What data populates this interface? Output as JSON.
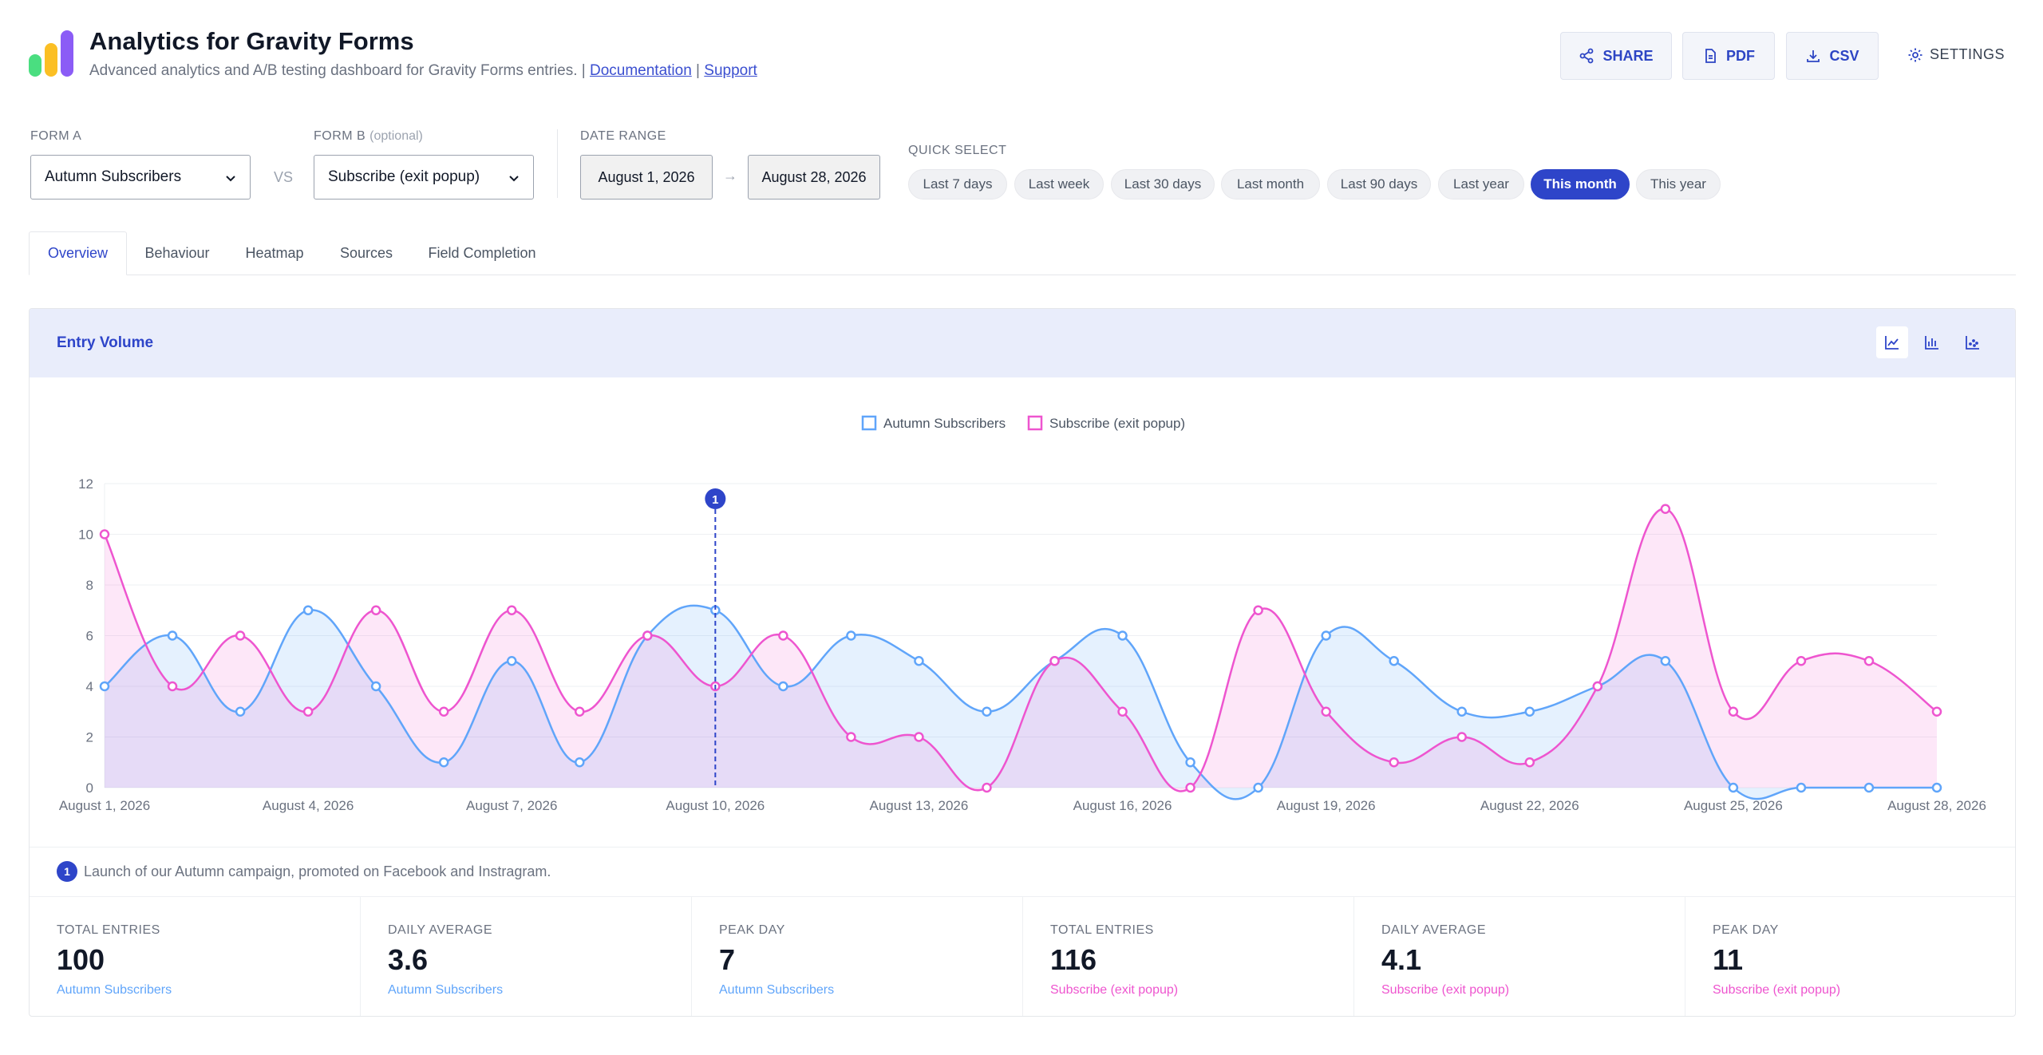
{
  "header": {
    "title": "Analytics for Gravity Forms",
    "subtitle": "Advanced analytics and A/B testing dashboard for Gravity Forms entries. |",
    "doc_link": "Documentation",
    "separator": "|",
    "support_link": "Support",
    "buttons": {
      "share": "SHARE",
      "pdf": "PDF",
      "csv": "CSV",
      "settings": "SETTINGS"
    }
  },
  "filters": {
    "form_a_label": "FORM A",
    "form_a_value": "Autumn Subscribers",
    "vs": "VS",
    "form_b_label": "FORM B",
    "form_b_optional": "(optional)",
    "form_b_value": "Subscribe (exit popup)",
    "date_range_label": "DATE RANGE",
    "date_from": "August 1, 2026",
    "date_arrow": "→",
    "date_to": "August 28, 2026",
    "quick_select_label": "QUICK SELECT",
    "quick": [
      "Last 7 days",
      "Last week",
      "Last 30 days",
      "Last month",
      "Last 90 days",
      "Last year",
      "This month",
      "This year"
    ],
    "quick_active": "This month"
  },
  "tabs": [
    "Overview",
    "Behaviour",
    "Heatmap",
    "Sources",
    "Field Completion"
  ],
  "active_tab": "Overview",
  "panel": {
    "title": "Entry Volume",
    "chart_types": [
      "line-chart-icon",
      "bar-chart-icon",
      "scatter-chart-icon"
    ],
    "active_chart_type": "line-chart-icon"
  },
  "annotation": {
    "number": "1",
    "text": "Launch of our Autumn campaign, promoted on Facebook and Instragram."
  },
  "stats": [
    {
      "label": "TOTAL ENTRIES",
      "value": "100",
      "series": "Autumn Subscribers"
    },
    {
      "label": "DAILY AVERAGE",
      "value": "3.6",
      "series": "Autumn Subscribers"
    },
    {
      "label": "PEAK DAY",
      "value": "7",
      "series": "Autumn Subscribers"
    },
    {
      "label": "TOTAL ENTRIES",
      "value": "116",
      "series": "Subscribe (exit popup)"
    },
    {
      "label": "DAILY AVERAGE",
      "value": "4.1",
      "series": "Subscribe (exit popup)"
    },
    {
      "label": "PEAK DAY",
      "value": "11",
      "series": "Subscribe (exit popup)"
    }
  ],
  "colors": {
    "accent": "#2e45c9",
    "series_a": "#60a5fa",
    "series_b": "#ee55cf"
  },
  "chart_data": {
    "type": "area",
    "x": [
      "August 1, 2026",
      "August 2, 2026",
      "August 3, 2026",
      "August 4, 2026",
      "August 5, 2026",
      "August 6, 2026",
      "August 7, 2026",
      "August 8, 2026",
      "August 9, 2026",
      "August 10, 2026",
      "August 11, 2026",
      "August 12, 2026",
      "August 13, 2026",
      "August 14, 2026",
      "August 15, 2026",
      "August 16, 2026",
      "August 17, 2026",
      "August 18, 2026",
      "August 19, 2026",
      "August 20, 2026",
      "August 21, 2026",
      "August 22, 2026",
      "August 23, 2026",
      "August 24, 2026",
      "August 25, 2026",
      "August 26, 2026",
      "August 27, 2026",
      "August 28, 2026"
    ],
    "x_tick_labels": [
      "August 1, 2026",
      "August 4, 2026",
      "August 7, 2026",
      "August 10, 2026",
      "August 13, 2026",
      "August 16, 2026",
      "August 19, 2026",
      "August 22, 2026",
      "August 25, 2026",
      "August 28, 2026"
    ],
    "series": [
      {
        "name": "Autumn Subscribers",
        "color": "#60a5fa",
        "values": [
          4,
          6,
          3,
          7,
          4,
          1,
          5,
          1,
          6,
          7,
          4,
          6,
          5,
          3,
          5,
          6,
          1,
          0,
          6,
          5,
          3,
          3,
          4,
          5,
          0,
          0,
          0,
          0
        ]
      },
      {
        "name": "Subscribe (exit popup)",
        "color": "#ee55cf",
        "values": [
          10,
          4,
          6,
          3,
          7,
          3,
          7,
          3,
          6,
          4,
          6,
          2,
          2,
          0,
          5,
          3,
          0,
          7,
          3,
          1,
          2,
          1,
          4,
          11,
          3,
          5,
          5,
          3
        ]
      }
    ],
    "ylim": [
      0,
      12
    ],
    "yticks": [
      0,
      2,
      4,
      6,
      8,
      10,
      12
    ],
    "grid": true,
    "legend": "top-center",
    "annotation": {
      "date": "August 10, 2026",
      "label": "1"
    }
  }
}
